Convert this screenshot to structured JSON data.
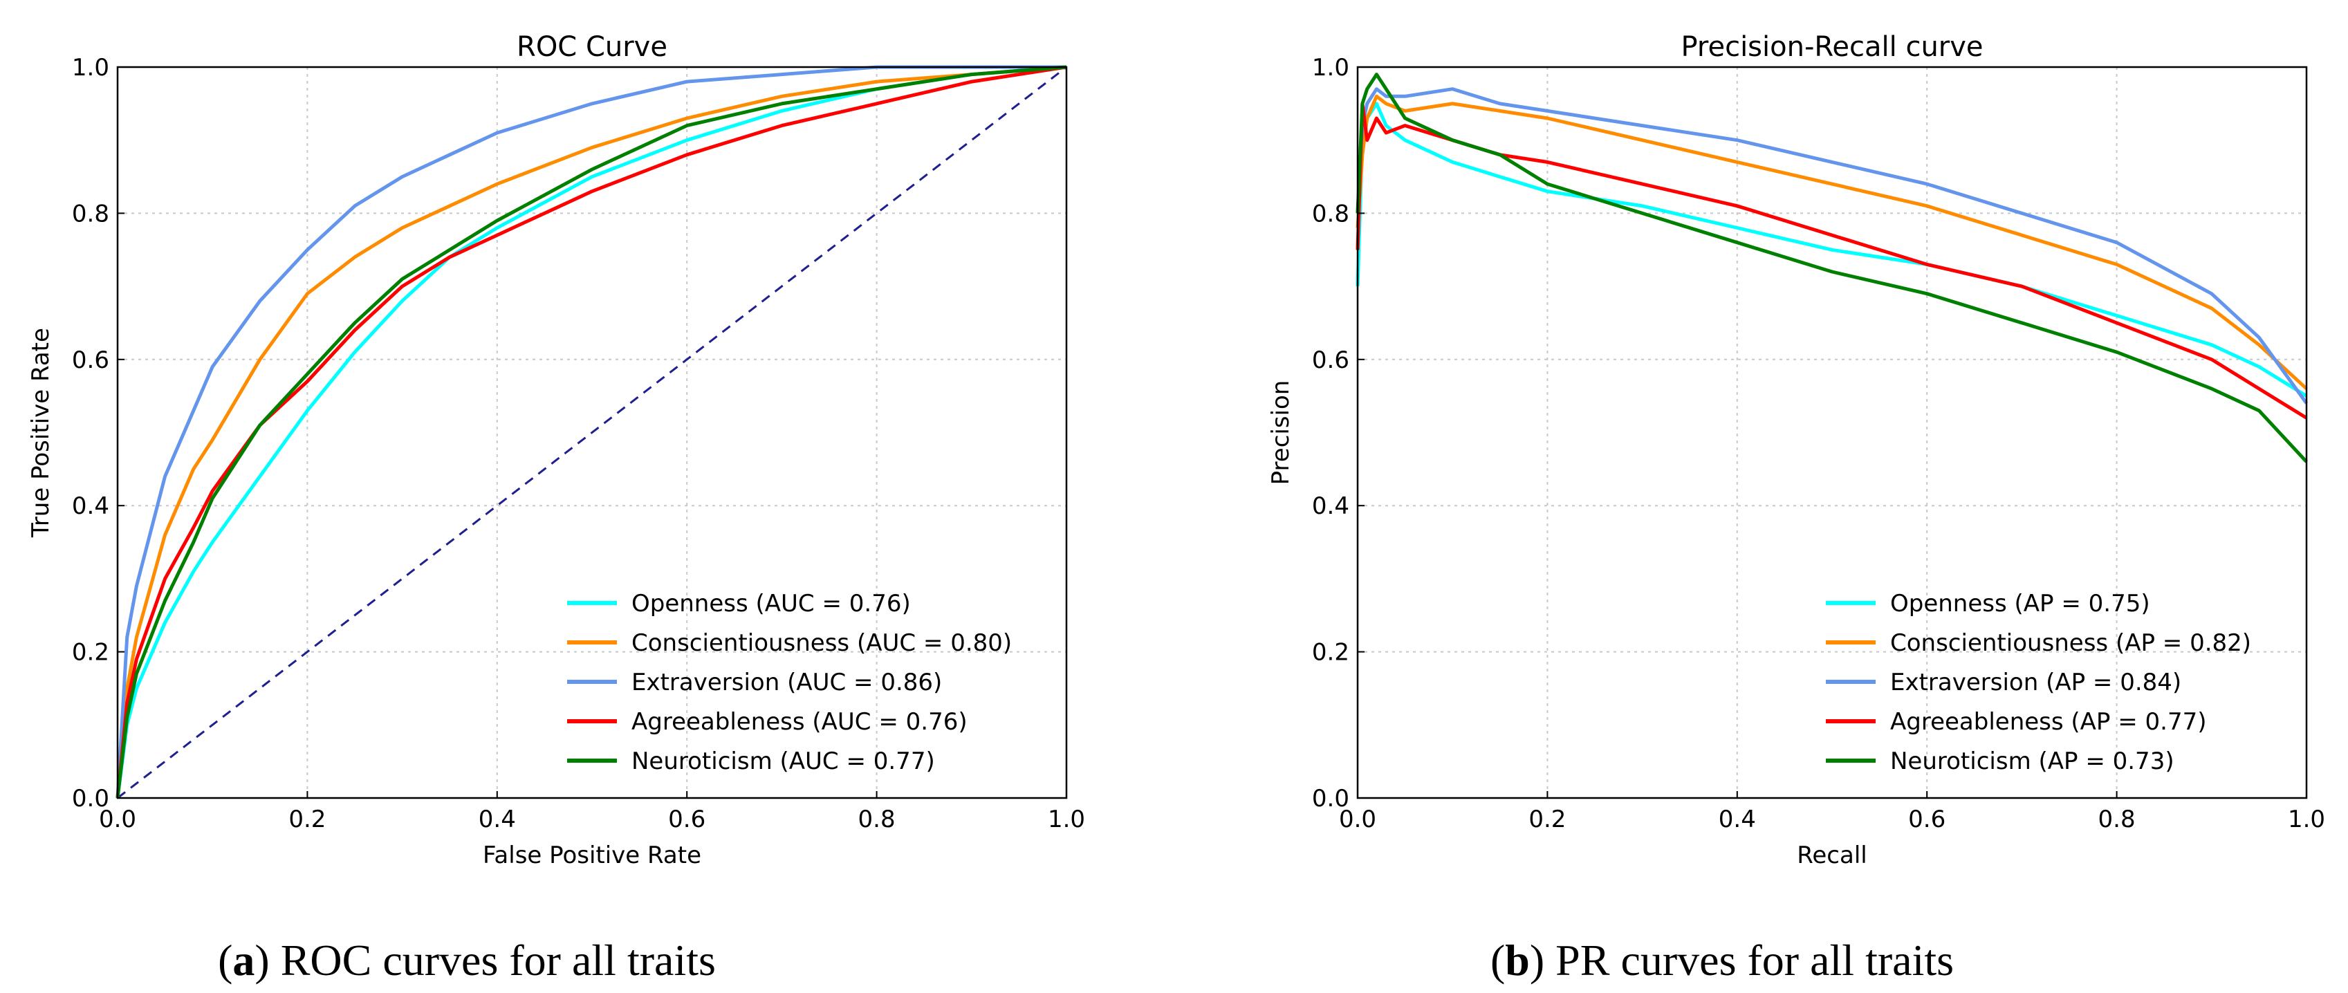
{
  "chart_data": [
    {
      "type": "line",
      "title": "ROC Curve",
      "xlabel": "False Positive Rate",
      "ylabel": "True Positive Rate",
      "xlim": [
        0,
        1
      ],
      "ylim": [
        0,
        1
      ],
      "xticks": [
        "0.0",
        "0.2",
        "0.4",
        "0.6",
        "0.8",
        "1.0"
      ],
      "yticks": [
        "0.0",
        "0.2",
        "0.4",
        "0.6",
        "0.8",
        "1.0"
      ],
      "grid": true,
      "legend_position": "lower-right",
      "caption_label": "a",
      "caption_text": "ROC curves for all traits",
      "diagonal": {
        "x": [
          0,
          1
        ],
        "y": [
          0,
          1
        ],
        "color": "#1f1f8f",
        "style": "dashed"
      },
      "series": [
        {
          "name": "Openness (AUC = 0.76)",
          "color": "#00ffff",
          "x": [
            0,
            0.01,
            0.02,
            0.05,
            0.08,
            0.1,
            0.15,
            0.2,
            0.25,
            0.3,
            0.35,
            0.4,
            0.5,
            0.6,
            0.7,
            0.8,
            0.9,
            1.0
          ],
          "y": [
            0,
            0.1,
            0.15,
            0.24,
            0.31,
            0.35,
            0.44,
            0.53,
            0.61,
            0.68,
            0.74,
            0.78,
            0.85,
            0.9,
            0.94,
            0.97,
            0.99,
            1.0
          ]
        },
        {
          "name": "Conscientiousness (AUC = 0.80)",
          "color": "#ff8c00",
          "x": [
            0,
            0.01,
            0.02,
            0.05,
            0.08,
            0.1,
            0.15,
            0.2,
            0.25,
            0.3,
            0.35,
            0.4,
            0.5,
            0.6,
            0.7,
            0.8,
            0.9,
            1.0
          ],
          "y": [
            0,
            0.15,
            0.22,
            0.36,
            0.45,
            0.49,
            0.6,
            0.69,
            0.74,
            0.78,
            0.81,
            0.84,
            0.89,
            0.93,
            0.96,
            0.98,
            0.99,
            1.0
          ]
        },
        {
          "name": "Extraversion (AUC = 0.86)",
          "color": "#6495ed",
          "x": [
            0,
            0.01,
            0.02,
            0.05,
            0.08,
            0.1,
            0.15,
            0.2,
            0.25,
            0.3,
            0.35,
            0.4,
            0.5,
            0.6,
            0.7,
            0.8,
            0.9,
            1.0
          ],
          "y": [
            0,
            0.22,
            0.29,
            0.44,
            0.53,
            0.59,
            0.68,
            0.75,
            0.81,
            0.85,
            0.88,
            0.91,
            0.95,
            0.98,
            0.99,
            1.0,
            1.0,
            1.0
          ]
        },
        {
          "name": "Agreeableness (AUC = 0.76)",
          "color": "#ff0000",
          "x": [
            0,
            0.01,
            0.02,
            0.05,
            0.08,
            0.1,
            0.15,
            0.2,
            0.25,
            0.3,
            0.35,
            0.4,
            0.5,
            0.6,
            0.7,
            0.8,
            0.9,
            1.0
          ],
          "y": [
            0,
            0.13,
            0.19,
            0.3,
            0.37,
            0.42,
            0.51,
            0.57,
            0.64,
            0.7,
            0.74,
            0.77,
            0.83,
            0.88,
            0.92,
            0.95,
            0.98,
            1.0
          ]
        },
        {
          "name": "Neuroticism (AUC = 0.77)",
          "color": "#008000",
          "x": [
            0,
            0.01,
            0.02,
            0.05,
            0.08,
            0.1,
            0.15,
            0.2,
            0.25,
            0.3,
            0.35,
            0.4,
            0.5,
            0.6,
            0.7,
            0.8,
            0.9,
            1.0
          ],
          "y": [
            0,
            0.11,
            0.17,
            0.27,
            0.35,
            0.41,
            0.51,
            0.58,
            0.65,
            0.71,
            0.75,
            0.79,
            0.86,
            0.92,
            0.95,
            0.97,
            0.99,
            1.0
          ]
        }
      ]
    },
    {
      "type": "line",
      "title": "Precision-Recall curve",
      "xlabel": "Recall",
      "ylabel": "Precision",
      "xlim": [
        0,
        1
      ],
      "ylim": [
        0,
        1
      ],
      "xticks": [
        "0.0",
        "0.2",
        "0.4",
        "0.6",
        "0.8",
        "1.0"
      ],
      "yticks": [
        "0.0",
        "0.2",
        "0.4",
        "0.6",
        "0.8",
        "1.0"
      ],
      "grid": true,
      "legend_position": "lower-right",
      "caption_label": "b",
      "caption_text": "PR curves for all traits",
      "series": [
        {
          "name": "Openness (AP = 0.75)",
          "color": "#00ffff",
          "x": [
            0,
            0.005,
            0.01,
            0.02,
            0.03,
            0.05,
            0.1,
            0.15,
            0.2,
            0.3,
            0.4,
            0.5,
            0.6,
            0.7,
            0.8,
            0.9,
            0.95,
            1.0
          ],
          "y": [
            0.7,
            0.9,
            0.93,
            0.95,
            0.92,
            0.9,
            0.87,
            0.85,
            0.83,
            0.81,
            0.78,
            0.75,
            0.73,
            0.7,
            0.66,
            0.62,
            0.59,
            0.55
          ]
        },
        {
          "name": "Conscientiousness (AP = 0.82)",
          "color": "#ff8c00",
          "x": [
            0,
            0.005,
            0.01,
            0.02,
            0.03,
            0.05,
            0.1,
            0.15,
            0.2,
            0.3,
            0.4,
            0.5,
            0.6,
            0.7,
            0.8,
            0.9,
            0.95,
            1.0
          ],
          "y": [
            0.78,
            0.88,
            0.93,
            0.96,
            0.95,
            0.94,
            0.95,
            0.94,
            0.93,
            0.9,
            0.87,
            0.84,
            0.81,
            0.77,
            0.73,
            0.67,
            0.62,
            0.56
          ]
        },
        {
          "name": "Extraversion (AP = 0.84)",
          "color": "#6495ed",
          "x": [
            0,
            0.005,
            0.01,
            0.02,
            0.03,
            0.05,
            0.1,
            0.15,
            0.2,
            0.3,
            0.4,
            0.5,
            0.6,
            0.7,
            0.8,
            0.9,
            0.95,
            1.0
          ],
          "y": [
            0.8,
            0.92,
            0.95,
            0.97,
            0.96,
            0.96,
            0.97,
            0.95,
            0.94,
            0.92,
            0.9,
            0.87,
            0.84,
            0.8,
            0.76,
            0.69,
            0.63,
            0.54
          ]
        },
        {
          "name": "Agreeableness (AP = 0.77)",
          "color": "#ff0000",
          "x": [
            0,
            0.005,
            0.01,
            0.02,
            0.03,
            0.05,
            0.1,
            0.15,
            0.2,
            0.3,
            0.4,
            0.5,
            0.6,
            0.7,
            0.8,
            0.9,
            0.95,
            1.0
          ],
          "y": [
            0.75,
            0.95,
            0.9,
            0.93,
            0.91,
            0.92,
            0.9,
            0.88,
            0.87,
            0.84,
            0.81,
            0.77,
            0.73,
            0.7,
            0.65,
            0.6,
            0.56,
            0.52
          ]
        },
        {
          "name": "Neuroticism (AP = 0.73)",
          "color": "#008000",
          "x": [
            0,
            0.005,
            0.01,
            0.02,
            0.03,
            0.05,
            0.1,
            0.15,
            0.2,
            0.3,
            0.4,
            0.5,
            0.6,
            0.7,
            0.8,
            0.9,
            0.95,
            1.0
          ],
          "y": [
            0.8,
            0.95,
            0.97,
            0.99,
            0.97,
            0.93,
            0.9,
            0.88,
            0.84,
            0.8,
            0.76,
            0.72,
            0.69,
            0.65,
            0.61,
            0.56,
            0.53,
            0.46
          ]
        }
      ]
    }
  ]
}
